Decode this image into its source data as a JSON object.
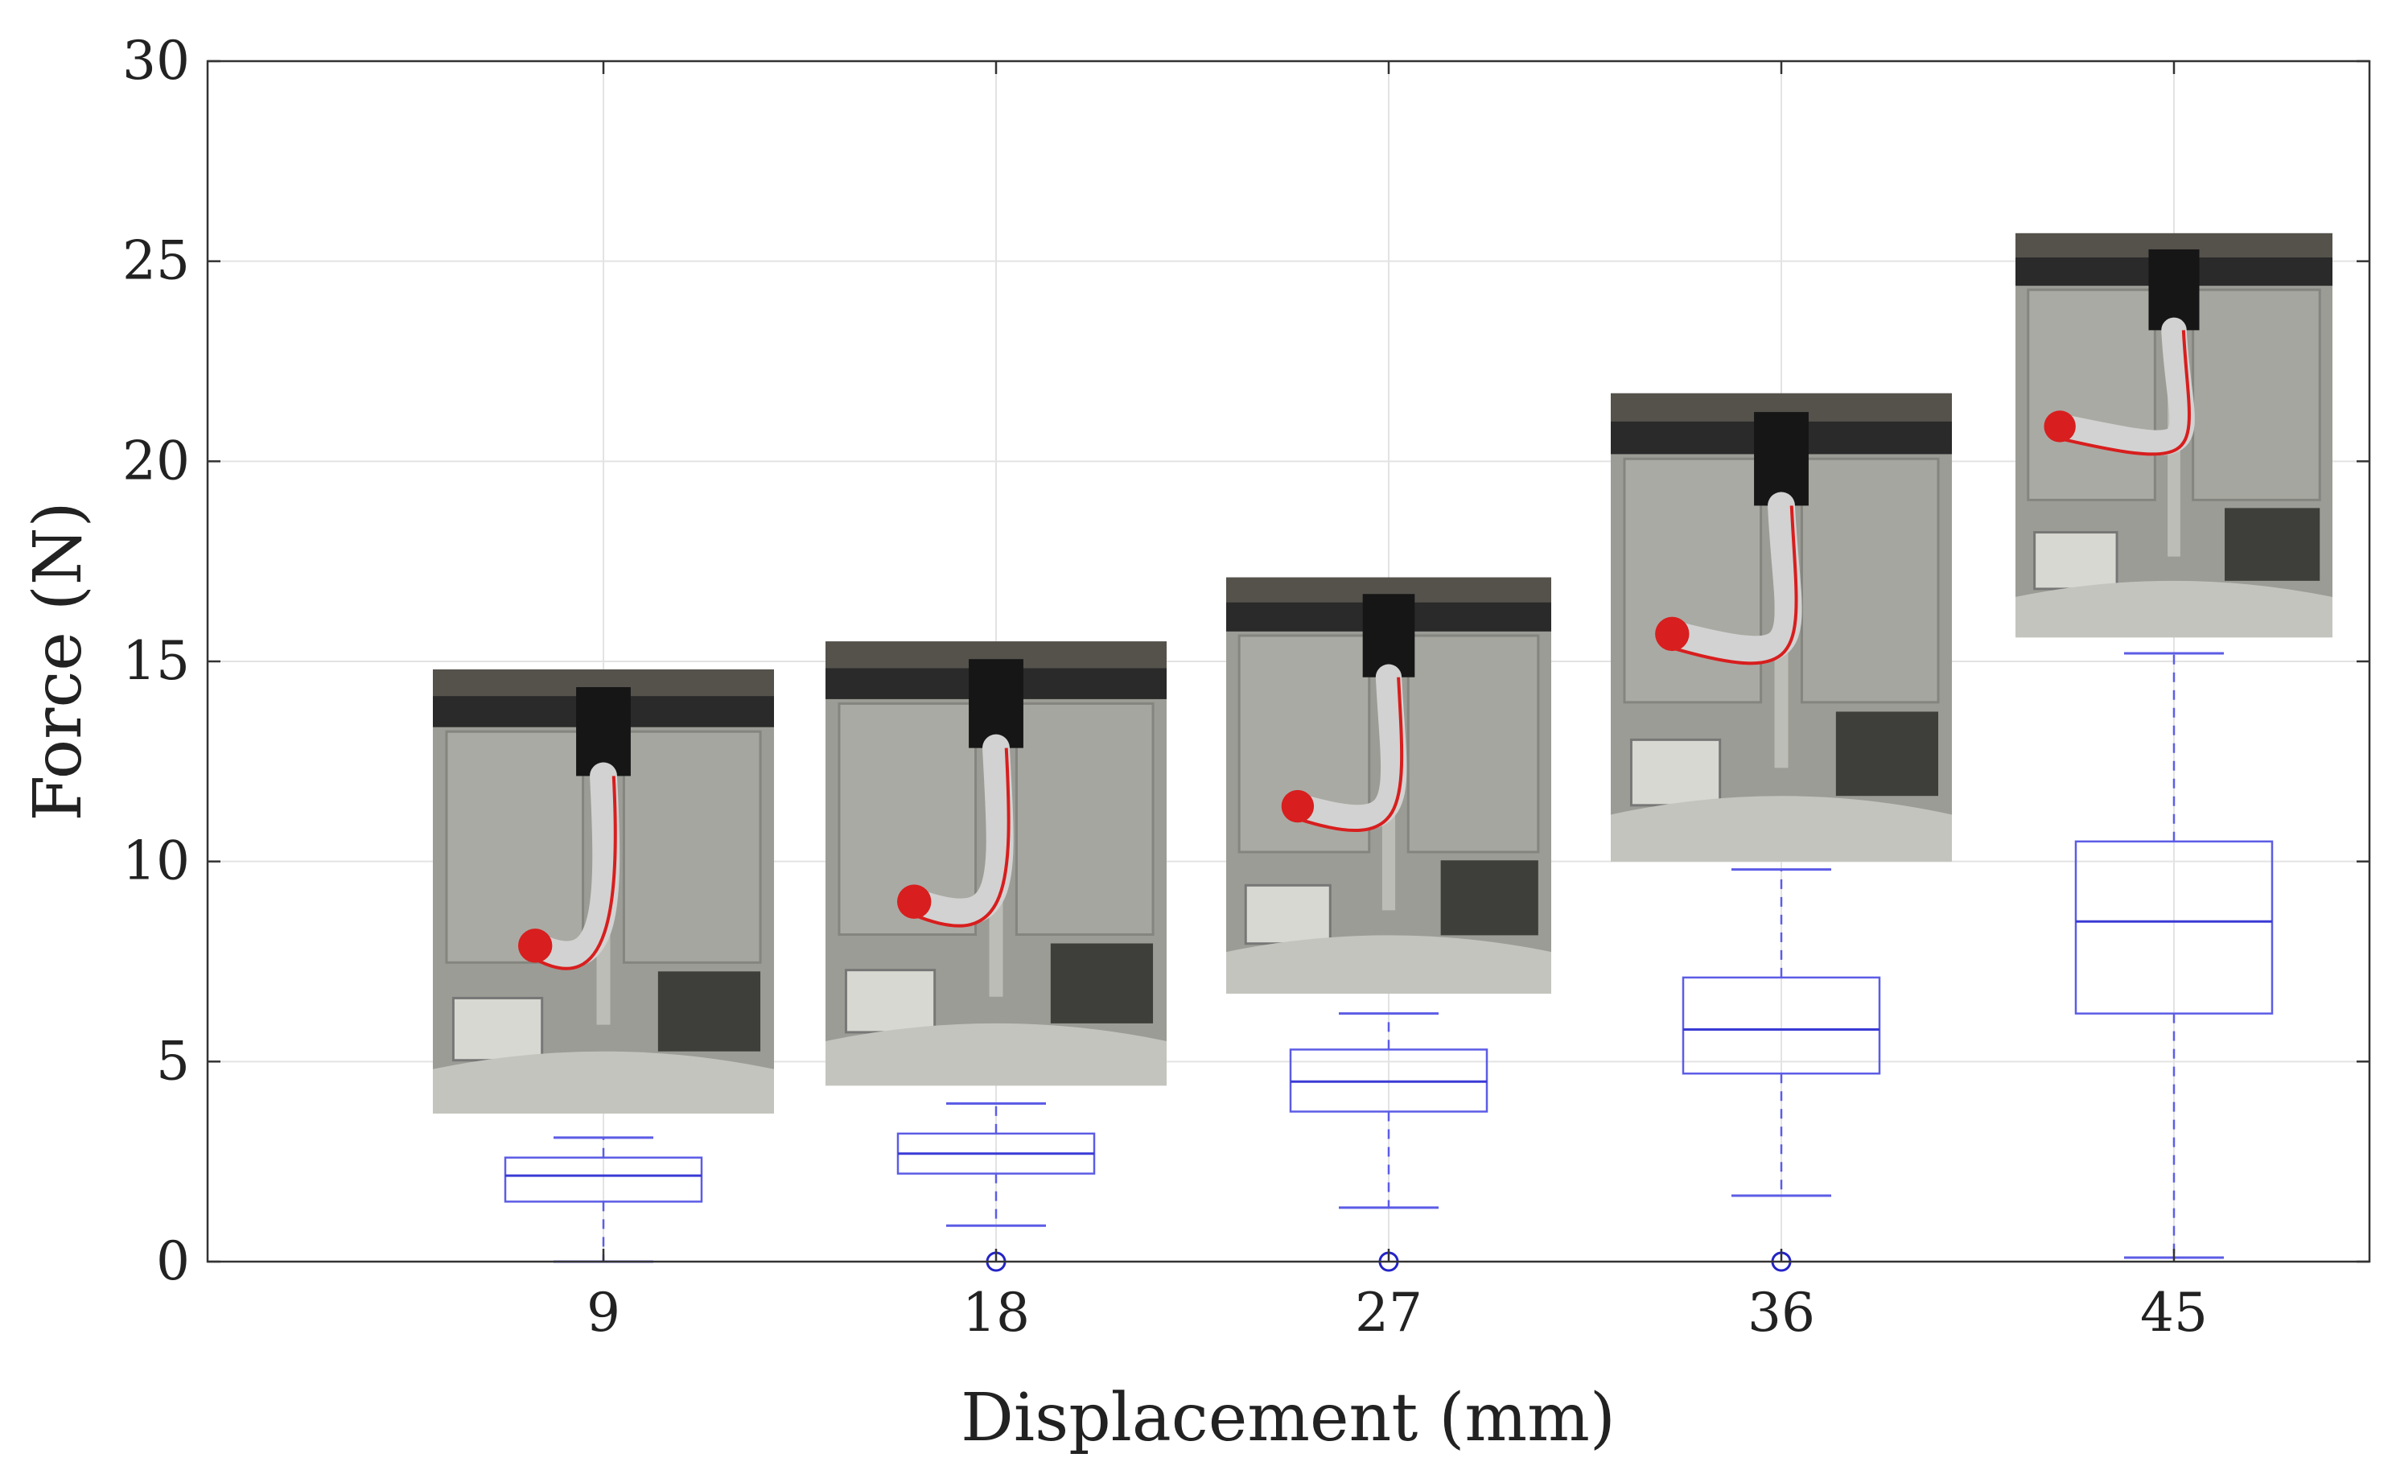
{
  "chart_data": {
    "type": "box",
    "xlabel": "Displacement (mm)",
    "ylabel": "Force (N)",
    "ylim": [
      0,
      30
    ],
    "yticks": [
      0,
      5,
      10,
      15,
      20,
      25,
      30
    ],
    "categories": [
      "9",
      "18",
      "27",
      "36",
      "45"
    ],
    "grid": true,
    "box_color": "#5c5ce6",
    "boxes": [
      {
        "category": "9",
        "min": 0.0,
        "q1": 1.5,
        "median": 2.15,
        "q3": 2.6,
        "max": 3.1,
        "outliers": []
      },
      {
        "category": "18",
        "min": 0.9,
        "q1": 2.2,
        "median": 2.7,
        "q3": 3.2,
        "max": 3.95,
        "outliers": [
          0.0
        ]
      },
      {
        "category": "27",
        "min": 1.35,
        "q1": 3.75,
        "median": 4.5,
        "q3": 5.3,
        "max": 6.2,
        "outliers": [
          0.0
        ]
      },
      {
        "category": "36",
        "min": 1.65,
        "q1": 4.7,
        "median": 5.8,
        "q3": 7.1,
        "max": 9.8,
        "outliers": [
          0.0
        ]
      },
      {
        "category": "45",
        "min": 0.1,
        "q1": 6.2,
        "median": 8.5,
        "q3": 10.5,
        "max": 15.2,
        "outliers": []
      }
    ],
    "inset_photos": [
      {
        "category": "9",
        "description": "soft robotic finger, slight bend",
        "y_bottom": 3.7,
        "y_top": 14.8
      },
      {
        "category": "18",
        "description": "soft robotic finger, more bend",
        "y_bottom": 4.4,
        "y_top": 15.5
      },
      {
        "category": "27",
        "description": "soft robotic finger, curled",
        "y_bottom": 6.7,
        "y_top": 17.1
      },
      {
        "category": "36",
        "description": "soft robotic finger, strongly curled",
        "y_bottom": 10.0,
        "y_top": 21.7
      },
      {
        "category": "45",
        "description": "soft robotic finger, fully curled",
        "y_bottom": 15.6,
        "y_top": 25.7
      }
    ]
  }
}
